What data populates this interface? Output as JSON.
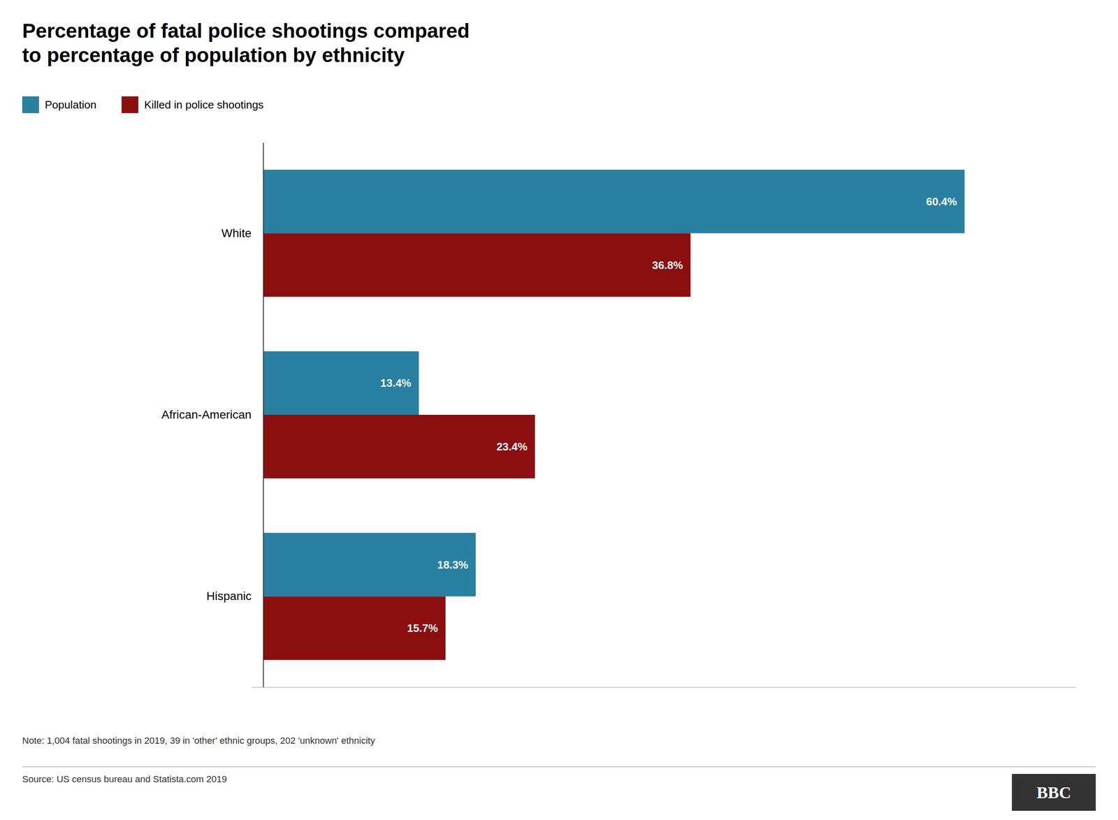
{
  "chart_data": {
    "type": "bar",
    "orientation": "horizontal",
    "title": "Percentage of fatal police shootings compared\nto percentage of population by ethnicity",
    "categories": [
      "White",
      "African-American",
      "Hispanic"
    ],
    "series": [
      {
        "name": "Population",
        "color": "#2980a0",
        "values": [
          60.4,
          13.4,
          18.3
        ],
        "value_labels": [
          "60.4%",
          "13.4%",
          "18.3%"
        ]
      },
      {
        "name": "Killed in police shootings",
        "color": "#8b0f0f",
        "values": [
          36.8,
          23.4,
          15.7
        ],
        "value_labels": [
          "36.8%",
          "23.4%",
          "15.7%"
        ]
      }
    ],
    "xlim": [
      -1,
      70
    ],
    "data_labels": true,
    "tick_labels": "y",
    "grid": false,
    "legend": "top-left",
    "annotations": [
      "Note: 1,004 fatal shootings in 2019, 39 in 'other' ethnic groups, 202 'unknown' ethnicity",
      "Source: US census bureau and Statista.com 2019",
      "BBC"
    ]
  }
}
